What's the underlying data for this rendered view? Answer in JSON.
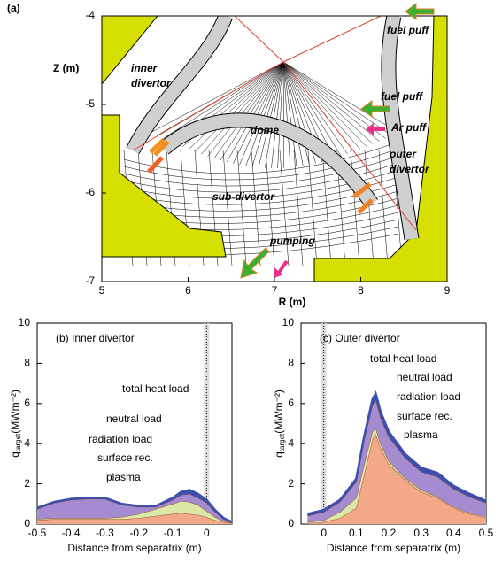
{
  "chart_data": [
    {
      "type": "diagram",
      "label": "(a)",
      "xlabel": "R (m)",
      "ylabel": "Z (m)",
      "xlim": [
        5,
        9
      ],
      "ylim": [
        -7,
        -4
      ],
      "xticks": [
        5,
        6,
        7,
        8,
        9
      ],
      "yticks": [
        -4,
        -5,
        -6,
        -7
      ],
      "annotations": [
        {
          "lines": [
            "fuel puff"
          ],
          "color": "#3a9a2a"
        },
        {
          "lines": [
            "fuel puff"
          ],
          "color": "#3a9a2a"
        },
        {
          "lines": [
            "Ar puff"
          ],
          "color": "#e0202a"
        },
        {
          "lines": [
            "dome"
          ],
          "color": "#2050c0"
        },
        {
          "lines": [
            "inner",
            "divertor"
          ],
          "color": "#2050c0"
        },
        {
          "lines": [
            "outer",
            "divertor"
          ],
          "color": "#2050c0"
        },
        {
          "lines": [
            "sub-divertor"
          ],
          "color": "#2050c0"
        },
        {
          "lines": [
            "pumping"
          ],
          "color": "#e0202a"
        }
      ]
    },
    {
      "type": "area",
      "title": "(b) Inner divertor",
      "xlabel": "Distance from separatrix (m)",
      "ylabel": {
        "main": "q",
        "sub": "target",
        "unit": "(MWm⁻²)"
      },
      "xlim": [
        -0.5,
        0.075
      ],
      "ylim": [
        0,
        10
      ],
      "xticks": [
        -0.5,
        -0.4,
        -0.3,
        -0.2,
        -0.1,
        0
      ],
      "yticks": [
        0,
        2,
        4,
        6,
        8,
        10
      ],
      "annotations": [
        {
          "lines": [
            "total heat load"
          ],
          "color": "#000000"
        }
      ],
      "x": [
        -0.5,
        -0.45,
        -0.4,
        -0.35,
        -0.3,
        -0.25,
        -0.2,
        -0.15,
        -0.1,
        -0.075,
        -0.05,
        -0.025,
        0,
        0.025,
        0.05,
        0.075
      ],
      "series": [
        {
          "name": "neutral load",
          "color": "#3a4fb0",
          "text_color": "#2a45c0",
          "values": [
            0.05,
            0.05,
            0.05,
            0.05,
            0.05,
            0.05,
            0.05,
            0.05,
            0.1,
            0.15,
            0.2,
            0.2,
            0.15,
            0.1,
            0.05,
            0.02
          ]
        },
        {
          "name": "radiation load",
          "color": "#a58bd0",
          "text_color": "#9a2aa8",
          "values": [
            0.5,
            0.75,
            0.9,
            0.95,
            0.95,
            0.6,
            0.35,
            0.1,
            0.2,
            0.3,
            0.4,
            0.35,
            0.4,
            0.25,
            0.1,
            0.01
          ]
        },
        {
          "name": "surface rec.",
          "color": "#dbe9a8",
          "text_color": "#2a8a2a",
          "values": [
            0.05,
            0.05,
            0.05,
            0.05,
            0.05,
            0.1,
            0.2,
            0.35,
            0.5,
            0.6,
            0.6,
            0.5,
            0.3,
            0.15,
            0.05,
            0.02
          ]
        },
        {
          "name": "plasma",
          "color": "#f3a887",
          "text_color": "#e0302a",
          "values": [
            0.2,
            0.25,
            0.25,
            0.25,
            0.25,
            0.25,
            0.3,
            0.4,
            0.5,
            0.55,
            0.5,
            0.45,
            0.35,
            0.2,
            0.1,
            0.05
          ]
        }
      ]
    },
    {
      "type": "area",
      "title": "(c) Outer divertor",
      "xlabel": "Distance from separatrix (m)",
      "ylabel": {
        "main": "q",
        "sub": "target",
        "unit": "(MWm⁻²)"
      },
      "xlim": [
        -0.07,
        0.5
      ],
      "ylim": [
        0,
        10
      ],
      "xticks": [
        0,
        0.1,
        0.2,
        0.3,
        0.4,
        0.5
      ],
      "yticks": [
        0,
        2,
        4,
        6,
        8,
        10
      ],
      "annotations": [
        {
          "lines": [
            "total heat load"
          ],
          "color": "#000000"
        }
      ],
      "x": [
        -0.05,
        0,
        0.05,
        0.1,
        0.125,
        0.15,
        0.16,
        0.175,
        0.2,
        0.25,
        0.3,
        0.35,
        0.4,
        0.45,
        0.5
      ],
      "series": [
        {
          "name": "neutral load",
          "color": "#3a4fb0",
          "text_color": "#2a45c0",
          "values": [
            0.1,
            0.1,
            0.1,
            0.15,
            0.2,
            0.3,
            0.3,
            0.3,
            0.25,
            0.2,
            0.2,
            0.2,
            0.15,
            0.15,
            0.1
          ]
        },
        {
          "name": "radiation load",
          "color": "#a58bd0",
          "text_color": "#9a2aa8",
          "values": [
            0.3,
            0.4,
            0.5,
            0.8,
            1.2,
            1.3,
            1.4,
            1.3,
            1.2,
            1.0,
            0.9,
            1.0,
            0.9,
            0.8,
            0.7
          ]
        },
        {
          "name": "surface rec.",
          "color": "#dbe9a8",
          "text_color": "#2a8a2a",
          "values": [
            0.05,
            0.1,
            0.3,
            0.5,
            0.5,
            0.4,
            0.3,
            0.2,
            0.15,
            0.1,
            0.1,
            0.05,
            0.05,
            0.05,
            0.05
          ]
        },
        {
          "name": "plasma",
          "color": "#f3a887",
          "text_color": "#e0302a",
          "values": [
            0.05,
            0.1,
            0.3,
            0.8,
            2.5,
            4.2,
            4.5,
            3.8,
            3.0,
            2.2,
            1.6,
            1.3,
            0.8,
            0.5,
            0.3
          ]
        }
      ]
    }
  ]
}
